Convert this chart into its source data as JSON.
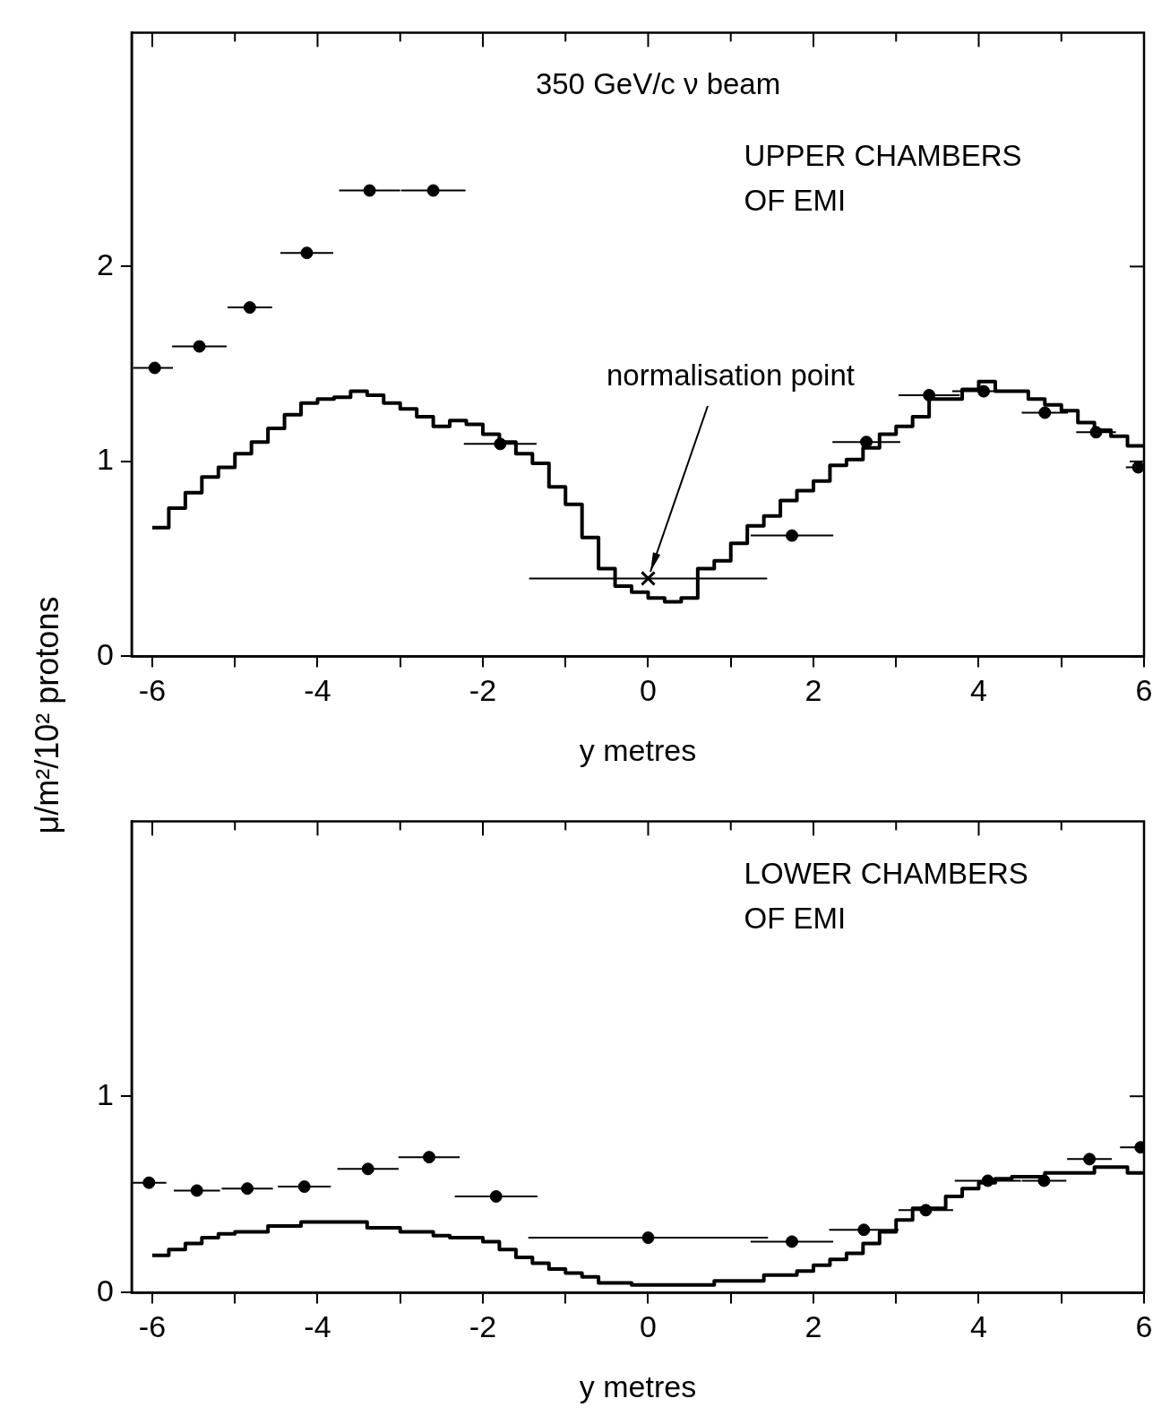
{
  "chart_data": [
    {
      "type": "histogram",
      "xlabel": "y metres",
      "ylabel": "μ/m²/10² protons",
      "xlim": [
        -6.25,
        6
      ],
      "ylim": [
        0,
        3.2
      ],
      "xticks": [
        -6,
        {
          "value": -5,
          "label": null
        },
        -4,
        {
          "value": -3,
          "label": null
        },
        -2,
        {
          "value": -1,
          "label": null
        },
        0,
        {
          "value": 1,
          "label": null
        },
        2,
        {
          "value": 3,
          "label": null
        },
        4,
        {
          "value": 5,
          "label": null
        },
        6
      ],
      "yticks": [
        0,
        1,
        2
      ],
      "legend": false,
      "annotations": [
        "350 GeV/c ν beam",
        "UPPER CHAMBERS OF EMI",
        {
          "text": "normalisation point",
          "x": 0,
          "y": 0.4
        }
      ],
      "series": [
        {
          "color": "#000000",
          "bins": [
            -6,
            -5.8,
            -5.6,
            -5.4,
            -5.2,
            -5,
            -4.8,
            -4.6,
            -4.4,
            -4.2,
            -4,
            -3.8,
            -3.6,
            -3.4,
            -3.2,
            -3,
            -2.8,
            -2.6,
            -2.4,
            -2.2,
            -2,
            -1.8,
            -1.6,
            -1.4,
            -1.2,
            -1,
            -0.8,
            -0.6,
            -0.4,
            -0.2,
            0,
            0.2,
            0.4,
            0.6,
            0.8,
            1,
            1.2,
            1.4,
            1.6,
            1.8,
            2,
            2.2,
            2.4,
            2.6,
            2.8,
            3,
            3.2,
            3.4,
            3.6,
            3.8,
            4,
            4.2,
            4.4,
            4.6,
            4.8,
            5,
            5.2,
            5.4,
            5.6,
            5.8,
            6
          ],
          "values": [
            0.66,
            0.76,
            0.84,
            0.92,
            0.97,
            1.04,
            1.1,
            1.17,
            1.24,
            1.3,
            1.32,
            1.33,
            1.36,
            1.34,
            1.3,
            1.27,
            1.23,
            1.18,
            1.21,
            1.19,
            1.14,
            1.1,
            1.04,
            0.99,
            0.87,
            0.78,
            0.61,
            0.45,
            0.36,
            0.33,
            0.3,
            0.28,
            0.3,
            0.45,
            0.49,
            0.58,
            0.67,
            0.72,
            0.8,
            0.85,
            0.9,
            0.98,
            1.01,
            1.07,
            1.14,
            1.18,
            1.23,
            1.32,
            1.32,
            1.37,
            1.41,
            1.36,
            1.36,
            1.32,
            1.29,
            1.26,
            1.2,
            1.16,
            1.13,
            1.08
          ]
        },
        {
          "type": "scatter",
          "color": "#000000",
          "marker": "circle",
          "x": [
            -5.97,
            -5.43,
            -4.82,
            -4.13,
            -3.37,
            -2.6,
            -1.79,
            1.74,
            2.64,
            3.4,
            4.06,
            4.8,
            5.42,
            5.93
          ],
          "values": [
            1.48,
            1.59,
            1.79,
            2.07,
            2.39,
            2.39,
            1.09,
            0.62,
            1.1,
            1.34,
            1.36,
            1.25,
            1.15,
            0.97
          ],
          "xerrors": [
            [
              -6.23,
              -5.75
            ],
            0.33,
            0.27,
            0.32,
            0.37,
            0.39,
            0.44,
            0.5,
            0.41,
            0.37,
            0.38,
            0.28,
            0.24,
            [
              5.78,
              6
            ]
          ]
        },
        {
          "type": "scatter",
          "color": "#000000",
          "marker": "cross",
          "x": [
            0
          ],
          "values": [
            0.4
          ],
          "xerrors": [
            1.44
          ]
        }
      ]
    },
    {
      "type": "histogram",
      "xlabel": "y metres",
      "xlim": [
        -6.25,
        6
      ],
      "ylim": [
        0,
        2.4
      ],
      "xticks": [
        -6,
        {
          "value": -5,
          "label": null
        },
        -4,
        {
          "value": -3,
          "label": null
        },
        -2,
        {
          "value": -1,
          "label": null
        },
        0,
        {
          "value": 1,
          "label": null
        },
        2,
        {
          "value": 3,
          "label": null
        },
        4,
        {
          "value": 5,
          "label": null
        },
        6
      ],
      "yticks": [
        0,
        1
      ],
      "legend": false,
      "annotations": [
        "LOWER CHAMBERS OF EMI"
      ],
      "series": [
        {
          "color": "#000000",
          "bins": [
            -6,
            -5.8,
            -5.6,
            -5.4,
            -5.2,
            -5,
            -4.8,
            -4.6,
            -4.4,
            -4.2,
            -4,
            -3.8,
            -3.6,
            -3.4,
            -3.2,
            -3,
            -2.8,
            -2.6,
            -2.4,
            -2.2,
            -2,
            -1.8,
            -1.6,
            -1.4,
            -1.2,
            -1,
            -0.8,
            -0.6,
            -0.4,
            -0.2,
            0,
            0.2,
            0.4,
            0.6,
            0.8,
            1,
            1.2,
            1.4,
            1.6,
            1.8,
            2,
            2.2,
            2.4,
            2.6,
            2.8,
            3,
            3.2,
            3.4,
            3.6,
            3.8,
            4,
            4.2,
            4.4,
            4.6,
            4.8,
            5,
            5.2,
            5.4,
            5.6,
            5.8,
            6
          ],
          "values": [
            0.19,
            0.22,
            0.25,
            0.28,
            0.3,
            0.31,
            0.31,
            0.34,
            0.34,
            0.36,
            0.36,
            0.36,
            0.36,
            0.33,
            0.33,
            0.31,
            0.31,
            0.29,
            0.28,
            0.28,
            0.26,
            0.22,
            0.18,
            0.15,
            0.12,
            0.1,
            0.08,
            0.05,
            0.05,
            0.04,
            0.04,
            0.04,
            0.04,
            0.04,
            0.06,
            0.06,
            0.06,
            0.09,
            0.09,
            0.11,
            0.14,
            0.17,
            0.2,
            0.25,
            0.31,
            0.37,
            0.43,
            0.43,
            0.49,
            0.53,
            0.56,
            0.58,
            0.59,
            0.59,
            0.61,
            0.61,
            0.61,
            0.64,
            0.64,
            0.61
          ]
        },
        {
          "type": "scatter",
          "color": "#000000",
          "marker": "circle",
          "x": [
            -6.04,
            -5.46,
            -4.85,
            -4.16,
            -3.39,
            -2.65,
            -1.84,
            0,
            1.74,
            2.61,
            3.36,
            4.11,
            4.79,
            5.34,
            5.96
          ],
          "values": [
            0.56,
            0.52,
            0.53,
            0.54,
            0.63,
            0.69,
            0.49,
            0.28,
            0.26,
            0.32,
            0.42,
            0.57,
            0.57,
            0.68,
            0.74
          ],
          "xerrors": [
            [
              -6.25,
              -5.83
            ],
            0.28,
            0.31,
            0.32,
            0.37,
            0.37,
            0.5,
            1.45,
            0.5,
            0.42,
            0.33,
            0.4,
            0.27,
            0.27,
            [
              5.71,
              6
            ]
          ]
        }
      ]
    }
  ]
}
